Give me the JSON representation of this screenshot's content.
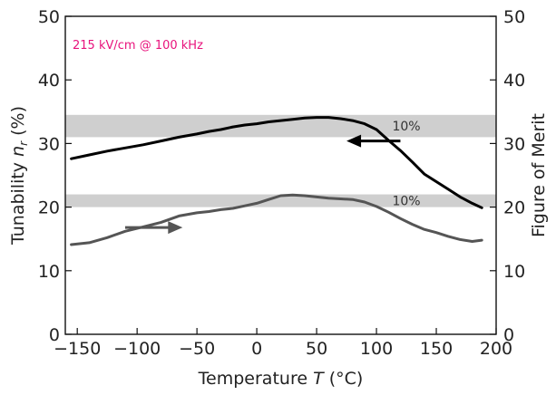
{
  "chart_data": {
    "type": "line",
    "annotation": "215 kV/cm @ 100 kHz",
    "xlabel_prefix": "Temperature ",
    "xlabel_var": "T",
    "xlabel_unit": " (°C)",
    "ylabel_left_prefix": "Tunability ",
    "ylabel_left_var": "n",
    "ylabel_left_sub": "r",
    "ylabel_left_unit": " (%)",
    "ylabel_right": "Figure of Merit",
    "xlim": [
      -160,
      200
    ],
    "ylim": [
      0,
      50
    ],
    "ylim_right": [
      0,
      50
    ],
    "xticks": [
      -150,
      -100,
      -50,
      0,
      50,
      100,
      150,
      200
    ],
    "xtick_labels": [
      "−150",
      "−100",
      "−50",
      "0",
      "50",
      "100",
      "150",
      "200"
    ],
    "yticks": [
      0,
      10,
      20,
      30,
      40,
      50
    ],
    "ytick_labels": [
      "0",
      "10",
      "20",
      "30",
      "40",
      "50"
    ],
    "bands": [
      {
        "label": "10%",
        "y0": 31,
        "y1": 34.5
      },
      {
        "label": "10%",
        "y0": 20,
        "y1": 22
      }
    ],
    "series": [
      {
        "axis": "left",
        "color": "#000000",
        "x": [
          -155,
          -140,
          -125,
          -110,
          -95,
          -80,
          -65,
          -50,
          -40,
          -30,
          -20,
          -10,
          0,
          10,
          20,
          30,
          40,
          50,
          60,
          70,
          80,
          90,
          100,
          110,
          120,
          130,
          140,
          150,
          160,
          170,
          180,
          188
        ],
        "y": [
          27.6,
          28.2,
          28.8,
          29.3,
          29.8,
          30.4,
          31.0,
          31.5,
          31.9,
          32.2,
          32.6,
          32.9,
          33.1,
          33.4,
          33.6,
          33.8,
          34.0,
          34.1,
          34.1,
          33.9,
          33.6,
          33.1,
          32.2,
          30.5,
          28.9,
          27.1,
          25.2,
          24.0,
          22.8,
          21.6,
          20.6,
          19.9
        ]
      },
      {
        "axis": "right",
        "color": "#555555",
        "x": [
          -155,
          -140,
          -125,
          -110,
          -95,
          -80,
          -65,
          -50,
          -40,
          -30,
          -20,
          -10,
          0,
          10,
          20,
          30,
          40,
          50,
          60,
          70,
          80,
          90,
          100,
          110,
          120,
          130,
          140,
          150,
          160,
          170,
          180,
          188
        ],
        "y": [
          14.1,
          14.4,
          15.2,
          16.2,
          16.9,
          17.6,
          18.6,
          19.1,
          19.3,
          19.6,
          19.8,
          20.2,
          20.6,
          21.2,
          21.8,
          21.9,
          21.8,
          21.6,
          21.4,
          21.3,
          21.2,
          20.8,
          20.1,
          19.2,
          18.2,
          17.3,
          16.5,
          16.0,
          15.4,
          14.9,
          14.6,
          14.8
        ]
      }
    ],
    "arrows": [
      {
        "direction": "left",
        "series": 0
      },
      {
        "direction": "right",
        "series": 1
      }
    ],
    "grid": false
  }
}
